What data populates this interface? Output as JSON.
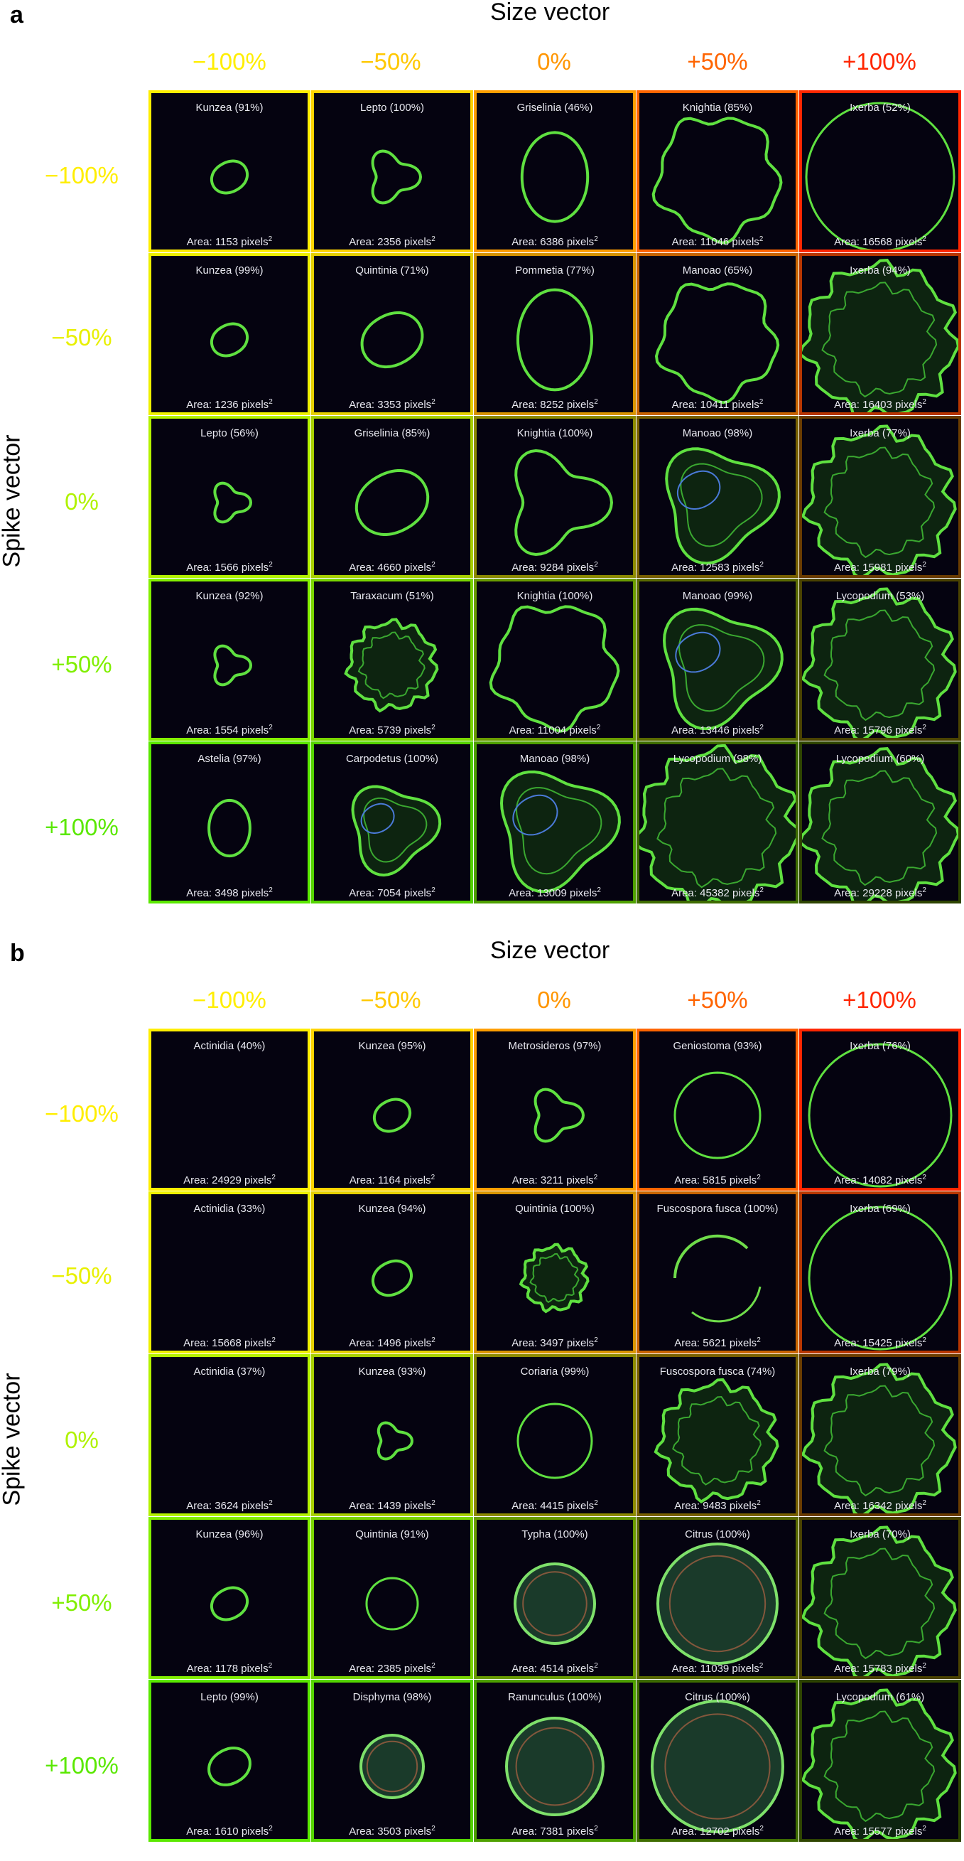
{
  "panels": [
    {
      "letter": "a",
      "size_title": "Size vector",
      "spike_title": "Spike vector",
      "columns": [
        {
          "label": "−100%",
          "color": "#ffee00"
        },
        {
          "label": "−50%",
          "color": "#ffc800"
        },
        {
          "label": "0%",
          "color": "#ff9600"
        },
        {
          "label": "+50%",
          "color": "#ff6400"
        },
        {
          "label": "+100%",
          "color": "#ff2600"
        }
      ],
      "rows": [
        {
          "label": "−100%",
          "color": "#ffee00"
        },
        {
          "label": "−50%",
          "color": "#e8f000"
        },
        {
          "label": "0%",
          "color": "#b0f200"
        },
        {
          "label": "+50%",
          "color": "#80ef00"
        },
        {
          "label": "+100%",
          "color": "#5ae800"
        }
      ],
      "tiles": [
        [
          {
            "label": "Kunzea (91%)",
            "area": "1153",
            "shape": "blob",
            "size": 0.13,
            "border": "#ffee00"
          },
          {
            "label": "Lepto (100%)",
            "area": "2356",
            "shape": "triangle",
            "size": 0.2,
            "border": "#ffd400"
          },
          {
            "label": "Griselinia (46%)",
            "area": "6386",
            "shape": "oval",
            "size": 0.32,
            "border": "#ff9e00"
          },
          {
            "label": "Knightia (85%)",
            "area": "11046",
            "shape": "wobbly",
            "size": 0.42,
            "border": "#ff6400"
          },
          {
            "label": "Ixerba (52%)",
            "area": "16568",
            "shape": "ring",
            "size": 0.52,
            "border": "#ff2600"
          }
        ],
        [
          {
            "label": "Kunzea (99%)",
            "area": "1236",
            "shape": "blob",
            "size": 0.13,
            "border": "#eef000"
          },
          {
            "label": "Quintinia (71%)",
            "area": "3353",
            "shape": "blob",
            "size": 0.22,
            "border": "#e6d000"
          },
          {
            "label": "Pommetia (77%)",
            "area": "8252",
            "shape": "oval",
            "size": 0.36,
            "border": "#d89400"
          },
          {
            "label": "Manoao (65%)",
            "area": "10411",
            "shape": "wobbly",
            "size": 0.4,
            "border": "#c86400"
          },
          {
            "label": "Ixerba (94%)",
            "area": "16403",
            "shape": "spiky",
            "size": 0.52,
            "border": "#b83600"
          }
        ],
        [
          {
            "label": "Lepto (56%)",
            "area": "1566",
            "shape": "triangle",
            "size": 0.15,
            "border": "#b4f200"
          },
          {
            "label": "Griselinia (85%)",
            "area": "4660",
            "shape": "blob",
            "size": 0.26,
            "border": "#a8d000"
          },
          {
            "label": "Knightia (100%)",
            "area": "9284",
            "shape": "triangle",
            "size": 0.4,
            "border": "#8c8a00"
          },
          {
            "label": "Manoao (98%)",
            "area": "12583",
            "shape": "lobed",
            "size": 0.44,
            "border": "#786000"
          },
          {
            "label": "Ixerba (77%)",
            "area": "15981",
            "shape": "spiky",
            "size": 0.5,
            "border": "#6a3c00"
          }
        ],
        [
          {
            "label": "Kunzea (92%)",
            "area": "1554",
            "shape": "triangle",
            "size": 0.15,
            "border": "#84ef00"
          },
          {
            "label": "Taraxacum (51%)",
            "area": "5739",
            "shape": "spiky",
            "size": 0.3,
            "border": "#7ad600"
          },
          {
            "label": "Knightia (100%)",
            "area": "11004",
            "shape": "wobbly",
            "size": 0.42,
            "border": "#6a9c00"
          },
          {
            "label": "Manoao (99%)",
            "area": "13446",
            "shape": "lobed",
            "size": 0.46,
            "border": "#5a6a00"
          },
          {
            "label": "Lycopodium (53%)",
            "area": "15796",
            "shape": "spiky",
            "size": 0.5,
            "border": "#4a4200"
          }
        ],
        [
          {
            "label": "Astelia (97%)",
            "area": "3498",
            "shape": "oval",
            "size": 0.2,
            "border": "#5ae800"
          },
          {
            "label": "Carpodetus (100%)",
            "area": "7054",
            "shape": "lobed",
            "size": 0.34,
            "border": "#54d400"
          },
          {
            "label": "Manoao (98%)",
            "area": "13009",
            "shape": "lobed",
            "size": 0.46,
            "border": "#4ea000"
          },
          {
            "label": "Lycopodium (98%)",
            "area": "45382",
            "shape": "spiky",
            "size": 0.54,
            "border": "#3e6c00"
          },
          {
            "label": "Lycopodium (60%)",
            "area": "29228",
            "shape": "spiky",
            "size": 0.52,
            "border": "#2e4400"
          }
        ]
      ]
    },
    {
      "letter": "b",
      "size_title": "Size vector",
      "spike_title": "Spike vector",
      "columns": [
        {
          "label": "−100%",
          "color": "#ffee00"
        },
        {
          "label": "−50%",
          "color": "#ffc800"
        },
        {
          "label": "0%",
          "color": "#ff9600"
        },
        {
          "label": "+50%",
          "color": "#ff6400"
        },
        {
          "label": "+100%",
          "color": "#ff2600"
        }
      ],
      "rows": [
        {
          "label": "−100%",
          "color": "#ffee00"
        },
        {
          "label": "−50%",
          "color": "#e8f000"
        },
        {
          "label": "0%",
          "color": "#b0f200"
        },
        {
          "label": "+50%",
          "color": "#80ef00"
        },
        {
          "label": "+100%",
          "color": "#5ae800"
        }
      ],
      "tiles": [
        [
          {
            "label": "Actinidia (40%)",
            "area": "24929",
            "shape": "none",
            "size": 0.0,
            "border": "#ffee00"
          },
          {
            "label": "Kunzea (95%)",
            "area": "1164",
            "shape": "blob",
            "size": 0.13,
            "border": "#ffd400"
          },
          {
            "label": "Metrosideros (97%)",
            "area": "3211",
            "shape": "triangle",
            "size": 0.2,
            "border": "#ff9e00"
          },
          {
            "label": "Geniostoma (93%)",
            "area": "5815",
            "shape": "ring",
            "size": 0.3,
            "border": "#ff6400"
          },
          {
            "label": "Ixerba (76%)",
            "area": "14082",
            "shape": "ring",
            "size": 0.5,
            "border": "#ff2600"
          }
        ],
        [
          {
            "label": "Actinidia (33%)",
            "area": "15668",
            "shape": "none",
            "size": 0.0,
            "border": "#eef000"
          },
          {
            "label": "Kunzea (94%)",
            "area": "1496",
            "shape": "blob",
            "size": 0.14,
            "border": "#e6d000"
          },
          {
            "label": "Quintinia (100%)",
            "area": "3497",
            "shape": "spiky",
            "size": 0.22,
            "border": "#d89400"
          },
          {
            "label": "Fuscospora fusca (100%)",
            "area": "5621",
            "shape": "arc",
            "size": 0.3,
            "border": "#c86400"
          },
          {
            "label": "Ixerba (69%)",
            "area": "15425",
            "shape": "ring",
            "size": 0.5,
            "border": "#b83600"
          }
        ],
        [
          {
            "label": "Actinidia (37%)",
            "area": "3624",
            "shape": "none",
            "size": 0.0,
            "border": "#b4f200"
          },
          {
            "label": "Kunzea (93%)",
            "area": "1439",
            "shape": "triangle",
            "size": 0.14,
            "border": "#a8d000"
          },
          {
            "label": "Coriaria (99%)",
            "area": "4415",
            "shape": "ring",
            "size": 0.26,
            "border": "#8c8a00"
          },
          {
            "label": "Fuscospora fusca (74%)",
            "area": "9483",
            "shape": "spiky",
            "size": 0.4,
            "border": "#786000"
          },
          {
            "label": "Ixerba (79%)",
            "area": "16342",
            "shape": "spiky",
            "size": 0.5,
            "border": "#6a3c00"
          }
        ],
        [
          {
            "label": "Kunzea (96%)",
            "area": "1178",
            "shape": "blob",
            "size": 0.13,
            "border": "#84ef00"
          },
          {
            "label": "Quintinia (91%)",
            "area": "2385",
            "shape": "ring",
            "size": 0.18,
            "border": "#7ad600"
          },
          {
            "label": "Typha (100%)",
            "area": "4514",
            "shape": "disc",
            "size": 0.28,
            "border": "#6a9c00"
          },
          {
            "label": "Citrus (100%)",
            "area": "11039",
            "shape": "disc",
            "size": 0.42,
            "border": "#5a6a00"
          },
          {
            "label": "Ixerba (70%)",
            "area": "15783",
            "shape": "spiky",
            "size": 0.5,
            "border": "#4a4200"
          }
        ],
        [
          {
            "label": "Lepto (99%)",
            "area": "1610",
            "shape": "blob",
            "size": 0.15,
            "border": "#5ae800"
          },
          {
            "label": "Disphyma (98%)",
            "area": "3503",
            "shape": "disc",
            "size": 0.22,
            "border": "#54d400"
          },
          {
            "label": "Ranunculus (100%)",
            "area": "7381",
            "shape": "disc",
            "size": 0.34,
            "border": "#4ea000"
          },
          {
            "label": "Citrus (100%)",
            "area": "12702",
            "shape": "disc",
            "size": 0.46,
            "border": "#3e6c00"
          },
          {
            "label": "Lycopodium (61%)",
            "area": "15577",
            "shape": "spiky",
            "size": 0.5,
            "border": "#2e4400"
          }
        ]
      ]
    }
  ],
  "area_prefix": "Area: ",
  "area_suffix": " pixels",
  "area_sup": "2"
}
